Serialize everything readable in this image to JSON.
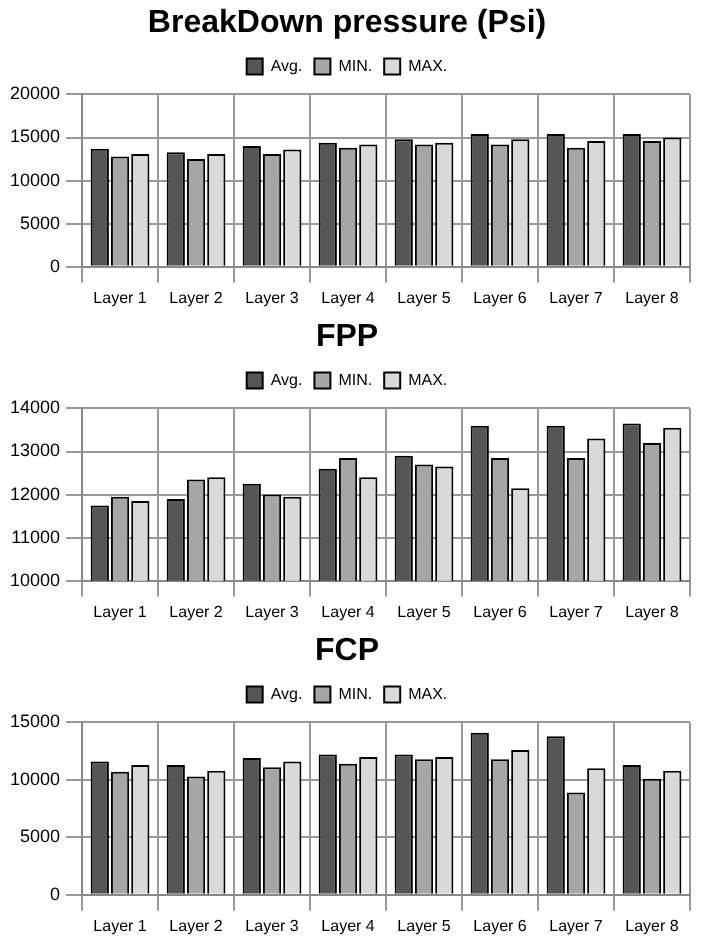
{
  "chart_data": [
    {
      "type": "bar",
      "title": "BreakDown pressure (Psi)",
      "categories": [
        "Layer 1",
        "Layer 2",
        "Layer 3",
        "Layer 4",
        "Layer 5",
        "Layer 6",
        "Layer 7",
        "Layer 8"
      ],
      "series": [
        {
          "name": "Avg.",
          "color": "#555555",
          "values": [
            13700,
            13300,
            14000,
            14400,
            14800,
            15400,
            15400,
            15400
          ]
        },
        {
          "name": "MIN.",
          "color": "#a6a6a6",
          "values": [
            12800,
            12500,
            13100,
            13800,
            14200,
            14200,
            13800,
            14600
          ]
        },
        {
          "name": "MAX.",
          "color": "#d9d9d9",
          "values": [
            13100,
            13100,
            13600,
            14200,
            14400,
            14800,
            14600,
            15000
          ]
        }
      ],
      "ylim": [
        0,
        20000
      ],
      "yticks": [
        0,
        5000,
        10000,
        15000,
        20000
      ],
      "grid": true,
      "legend": "top"
    },
    {
      "type": "bar",
      "title": "FPP",
      "categories": [
        "Layer 1",
        "Layer 2",
        "Layer 3",
        "Layer 4",
        "Layer 5",
        "Layer 6",
        "Layer 7",
        "Layer 8"
      ],
      "series": [
        {
          "name": "Avg.",
          "color": "#555555",
          "values": [
            11750,
            11900,
            12250,
            12600,
            12900,
            13600,
            13600,
            13650
          ]
        },
        {
          "name": "MIN.",
          "color": "#a6a6a6",
          "values": [
            11950,
            12350,
            12000,
            12850,
            12700,
            12850,
            12850,
            13200
          ]
        },
        {
          "name": "MAX.",
          "color": "#d9d9d9",
          "values": [
            11850,
            12400,
            11950,
            12400,
            12650,
            12150,
            13300,
            13550
          ]
        }
      ],
      "ylim": [
        10000,
        14000
      ],
      "yticks": [
        10000,
        11000,
        12000,
        13000,
        14000
      ],
      "grid": true,
      "legend": "top"
    },
    {
      "type": "bar",
      "title": "FCP",
      "categories": [
        "Layer 1",
        "Layer 2",
        "Layer 3",
        "Layer 4",
        "Layer 5",
        "Layer 6",
        "Layer 7",
        "Layer 8"
      ],
      "series": [
        {
          "name": "Avg.",
          "color": "#555555",
          "values": [
            11600,
            11300,
            11900,
            12200,
            12200,
            14100,
            13800,
            11300
          ]
        },
        {
          "name": "MIN.",
          "color": "#a6a6a6",
          "values": [
            10700,
            10300,
            11100,
            11400,
            11800,
            11800,
            8900,
            10100
          ]
        },
        {
          "name": "MAX.",
          "color": "#d9d9d9",
          "values": [
            11300,
            10800,
            11600,
            12000,
            12000,
            12600,
            11000,
            10800
          ]
        }
      ],
      "ylim": [
        0,
        15000
      ],
      "yticks": [
        0,
        5000,
        10000,
        15000
      ],
      "grid": true,
      "legend": "top"
    }
  ]
}
